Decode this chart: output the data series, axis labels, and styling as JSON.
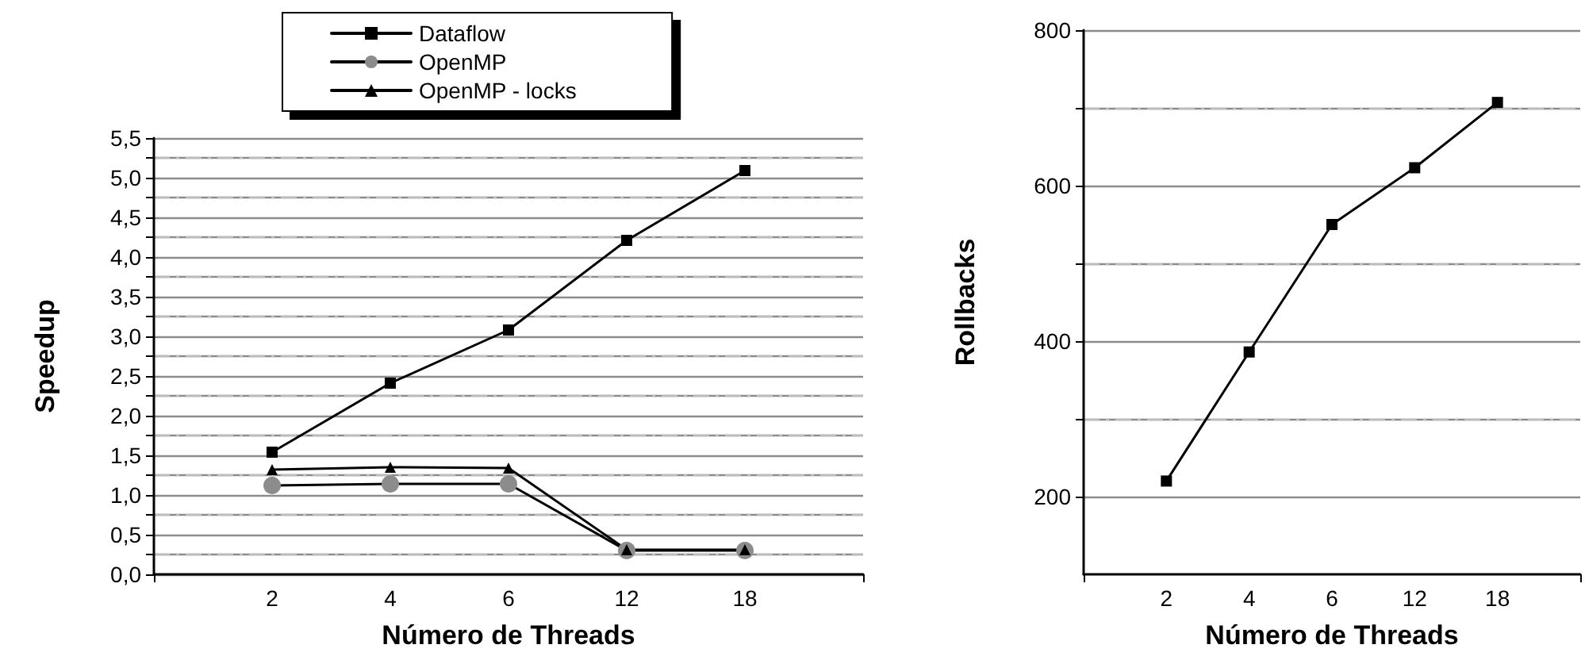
{
  "chart_data": [
    {
      "type": "line",
      "xlabel": "Número de Threads",
      "ylabel": "Speedup",
      "categories": [
        null,
        "2",
        "4",
        "6",
        "12",
        "18",
        null
      ],
      "ylim": [
        0,
        5.5
      ],
      "yticks": [
        {
          "value": 0,
          "label": "0,0"
        },
        {
          "value": 0.25,
          "label": null
        },
        {
          "value": 0.5,
          "label": "0,5"
        },
        {
          "value": 0.75,
          "label": null
        },
        {
          "value": 1,
          "label": "1,0"
        },
        {
          "value": 1.25,
          "label": null
        },
        {
          "value": 1.5,
          "label": "1,5"
        },
        {
          "value": 1.75,
          "label": null
        },
        {
          "value": 2,
          "label": "2,0"
        },
        {
          "value": 2.25,
          "label": null
        },
        {
          "value": 2.5,
          "label": "2,5"
        },
        {
          "value": 2.75,
          "label": null
        },
        {
          "value": 3,
          "label": "3,0"
        },
        {
          "value": 3.25,
          "label": null
        },
        {
          "value": 3.5,
          "label": "3,5"
        },
        {
          "value": 3.75,
          "label": null
        },
        {
          "value": 4,
          "label": "4,0"
        },
        {
          "value": 4.25,
          "label": null
        },
        {
          "value": 4.5,
          "label": "4,5"
        },
        {
          "value": 4.75,
          "label": null
        },
        {
          "value": 5,
          "label": "5,0"
        },
        {
          "value": 5.25,
          "label": null
        },
        {
          "value": 5.5,
          "label": "5,5"
        }
      ],
      "grid": "y",
      "legend": "top",
      "line_style": "solid",
      "series": [
        {
          "name": "Dataflow",
          "color": "#000000",
          "marker": "square",
          "values": [
            null,
            1.54,
            2.41,
            3.08,
            4.21,
            5.09,
            null
          ]
        },
        {
          "name": "OpenMP",
          "color": "#8c8c8c",
          "marker": "circle",
          "values": [
            null,
            1.12,
            1.14,
            1.14,
            0.3,
            0.3,
            null
          ]
        },
        {
          "name": "OpenMP - locks",
          "color": "#000000",
          "marker": "triangle",
          "values": [
            null,
            1.32,
            1.35,
            1.34,
            0.31,
            0.31,
            null
          ]
        }
      ]
    },
    {
      "type": "line",
      "xlabel": "Número de Threads",
      "ylabel": "Rollbacks",
      "categories": [
        null,
        "2",
        "4",
        "6",
        "12",
        "18",
        null
      ],
      "ylim": [
        100,
        800
      ],
      "yticks": [
        200,
        {
          "value": 300,
          "label": null
        },
        400,
        {
          "value": 500,
          "label": null
        },
        600,
        {
          "value": 700,
          "label": null
        },
        800
      ],
      "grid": "y",
      "legend": false,
      "line_style": "solid",
      "marker": "square",
      "series": [
        {
          "color": "#000000",
          "values": [
            null,
            220,
            386,
            550,
            623,
            707,
            null
          ]
        }
      ]
    }
  ]
}
